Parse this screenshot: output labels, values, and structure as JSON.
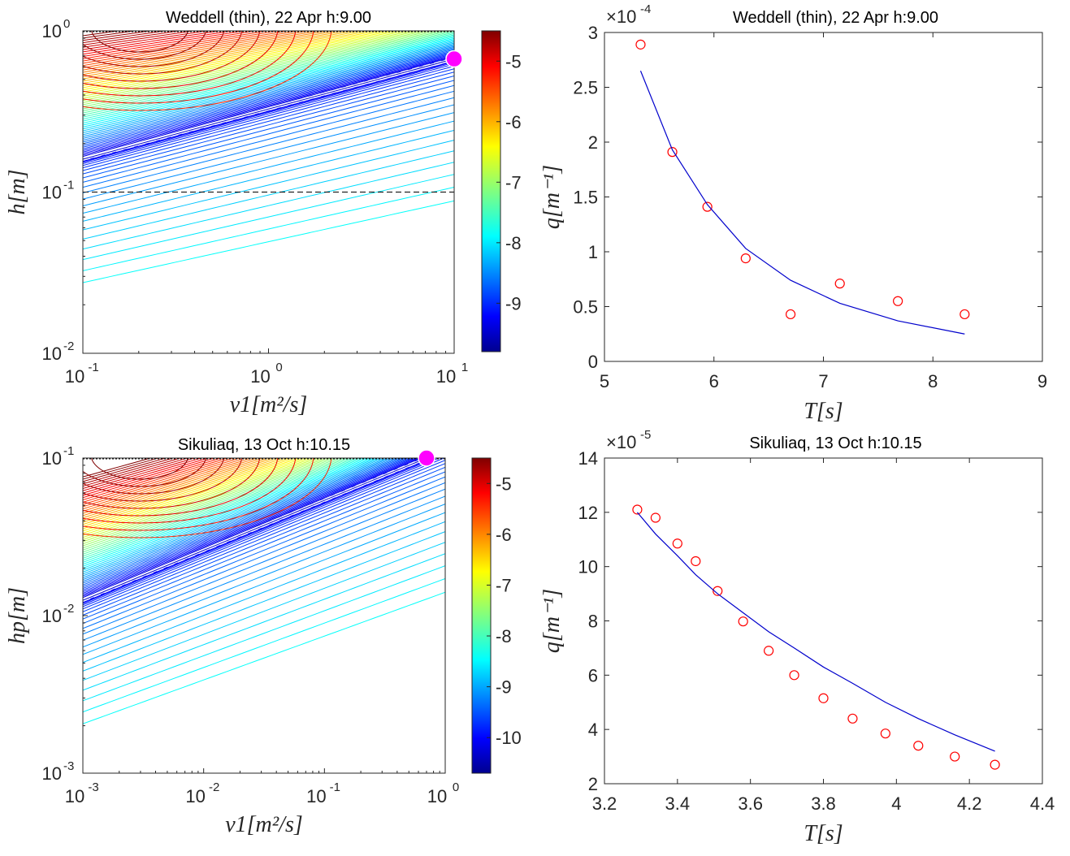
{
  "chart_data": [
    {
      "type": "contour",
      "title": "Weddell (thin), 22 Apr h:9.00",
      "xlabel": "ν1[m²/s]",
      "ylabel": "h[m]",
      "xscale": "log",
      "yscale": "log",
      "xlim": [
        0.1,
        10
      ],
      "ylim": [
        0.01,
        1
      ],
      "xticks": [
        "10",
        "10",
        "10"
      ],
      "xtick_exp": [
        "-1",
        "0",
        "1"
      ],
      "yticks": [
        "10",
        "10",
        "10"
      ],
      "ytick_exp": [
        "-2",
        "-1",
        "0"
      ],
      "colorbar": {
        "ticks": [
          "-5",
          "-6",
          "-7",
          "-8",
          "-9"
        ],
        "range": [
          -9.8,
          -4.5
        ],
        "colormap": "jet"
      },
      "valley": {
        "x": [
          0.1,
          10
        ],
        "y": [
          0.16,
          0.67
        ]
      },
      "dashed_line_y": 0.1,
      "marker": {
        "x": 10,
        "y": 0.67,
        "color": "#ff00ff"
      }
    },
    {
      "type": "scatter",
      "title": "Weddell (thin), 22 Apr h:9.00",
      "xlabel": "T[s]",
      "ylabel": "q[m⁻¹]",
      "xlim": [
        5,
        9
      ],
      "ylim": [
        0,
        3
      ],
      "xticks": [
        "5",
        "6",
        "7",
        "8",
        "9"
      ],
      "yticks": [
        "0",
        "0.5",
        "1",
        "1.5",
        "2",
        "2.5",
        "3"
      ],
      "scale_label": "×10",
      "scale_exp": "-4",
      "series": [
        {
          "kind": "points",
          "color": "#ff0000",
          "x": [
            5.33,
            5.62,
            5.94,
            6.29,
            6.7,
            7.15,
            7.68,
            8.29
          ],
          "y": [
            2.89,
            1.91,
            1.41,
            0.94,
            0.43,
            0.71,
            0.55,
            0.43
          ]
        },
        {
          "kind": "line",
          "color": "#0000cc",
          "x": [
            5.33,
            5.62,
            5.94,
            6.29,
            6.7,
            7.15,
            7.68,
            8.29
          ],
          "y": [
            2.65,
            1.93,
            1.43,
            1.03,
            0.74,
            0.53,
            0.37,
            0.25
          ]
        }
      ]
    },
    {
      "type": "contour",
      "title": "Sikuliaq, 13 Oct h:10.15",
      "xlabel": "ν1[m²/s]",
      "ylabel": "hp[m]",
      "xscale": "log",
      "yscale": "log",
      "xlim": [
        0.001,
        1
      ],
      "ylim": [
        0.001,
        0.1
      ],
      "xticks": [
        "10",
        "10",
        "10",
        "10"
      ],
      "xtick_exp": [
        "-3",
        "-2",
        "-1",
        "0"
      ],
      "yticks": [
        "10",
        "10",
        "10"
      ],
      "ytick_exp": [
        "-3",
        "-2",
        "-1"
      ],
      "colorbar": {
        "ticks": [
          "-5",
          "-6",
          "-7",
          "-8",
          "-9",
          "-10"
        ],
        "range": [
          -10.7,
          -4.5
        ],
        "colormap": "jet"
      },
      "valley": {
        "x": [
          0.001,
          0.7
        ],
        "y": [
          0.0125,
          0.1
        ]
      },
      "marker": {
        "x": 0.7,
        "y": 0.1,
        "color": "#ff00ff"
      }
    },
    {
      "type": "scatter",
      "title": "Sikuliaq, 13 Oct h:10.15",
      "xlabel": "T[s]",
      "ylabel": "q[m⁻¹]",
      "xlim": [
        3.2,
        4.4
      ],
      "ylim": [
        2,
        14
      ],
      "xticks": [
        "3.2",
        "3.4",
        "3.6",
        "3.8",
        "4",
        "4.2",
        "4.4"
      ],
      "yticks": [
        "2",
        "4",
        "6",
        "8",
        "10",
        "12",
        "14"
      ],
      "scale_label": "×10",
      "scale_exp": "-5",
      "series": [
        {
          "kind": "points",
          "color": "#ff0000",
          "x": [
            3.29,
            3.34,
            3.4,
            3.45,
            3.51,
            3.58,
            3.65,
            3.72,
            3.8,
            3.88,
            3.97,
            4.06,
            4.16,
            4.27
          ],
          "y": [
            12.1,
            11.8,
            10.85,
            10.2,
            9.1,
            7.98,
            6.9,
            6.0,
            5.15,
            4.4,
            3.85,
            3.4,
            3.0,
            2.7
          ]
        },
        {
          "kind": "line",
          "color": "#0000cc",
          "x": [
            3.29,
            3.34,
            3.4,
            3.45,
            3.51,
            3.58,
            3.65,
            3.72,
            3.8,
            3.88,
            3.97,
            4.06,
            4.16,
            4.27
          ],
          "y": [
            12.0,
            11.2,
            10.4,
            9.7,
            9.0,
            8.3,
            7.6,
            7.0,
            6.3,
            5.7,
            5.0,
            4.4,
            3.8,
            3.2
          ]
        }
      ]
    }
  ]
}
